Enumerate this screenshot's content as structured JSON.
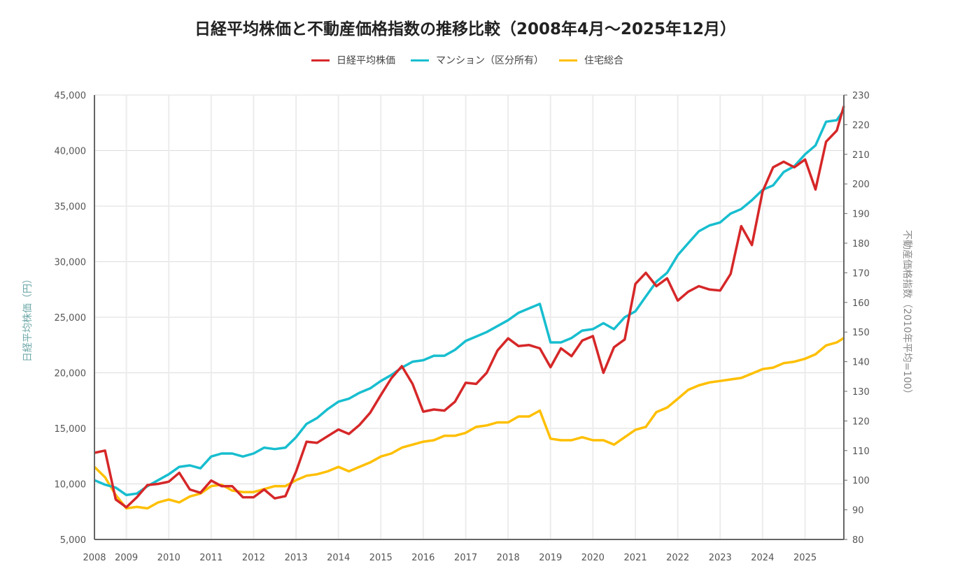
{
  "chart_data": {
    "type": "line",
    "title": "日経平均株価と不動産価格指数の推移比較（2008年4月～2025年12月）",
    "ylabel_left": "日経平均株価（円）",
    "ylabel_right": "不動産価格指数（2010年平均=100）",
    "ylim_left": [
      5000,
      45000
    ],
    "ylim_right": [
      80,
      230
    ],
    "yticks_left": [
      "5,000",
      "10,000",
      "15,000",
      "20,000",
      "25,000",
      "30,000",
      "35,000",
      "40,000",
      "45,000"
    ],
    "yticks_right": [
      "80",
      "90",
      "100",
      "110",
      "120",
      "130",
      "140",
      "150",
      "160",
      "170",
      "180",
      "190",
      "200",
      "210",
      "220",
      "230"
    ],
    "xticks": [
      "2008",
      "2009",
      "2010",
      "2011",
      "2012",
      "2013",
      "2014",
      "2015",
      "2016",
      "2017",
      "2018",
      "2019",
      "2020",
      "2021",
      "2022",
      "2023",
      "2024",
      "2025"
    ],
    "grid": true,
    "legend_position": "top",
    "x": [
      "2008-04",
      "2008-07",
      "2008-10",
      "2009-01",
      "2009-04",
      "2009-07",
      "2009-10",
      "2010-01",
      "2010-04",
      "2010-07",
      "2010-10",
      "2011-01",
      "2011-04",
      "2011-07",
      "2011-10",
      "2012-01",
      "2012-04",
      "2012-07",
      "2012-10",
      "2013-01",
      "2013-04",
      "2013-07",
      "2013-10",
      "2014-01",
      "2014-04",
      "2014-07",
      "2014-10",
      "2015-01",
      "2015-04",
      "2015-07",
      "2015-10",
      "2016-01",
      "2016-04",
      "2016-07",
      "2016-10",
      "2017-01",
      "2017-04",
      "2017-07",
      "2017-10",
      "2018-01",
      "2018-04",
      "2018-07",
      "2018-10",
      "2019-01",
      "2019-04",
      "2019-07",
      "2019-10",
      "2020-01",
      "2020-04",
      "2020-07",
      "2020-10",
      "2021-01",
      "2021-04",
      "2021-07",
      "2021-10",
      "2022-01",
      "2022-04",
      "2022-07",
      "2022-10",
      "2023-01",
      "2023-04",
      "2023-07",
      "2023-10",
      "2024-01",
      "2024-04",
      "2024-07",
      "2024-10",
      "2025-01",
      "2025-04",
      "2025-07",
      "2025-10",
      "2025-12"
    ],
    "series": [
      {
        "name": "日経平均株価",
        "axis": "left",
        "color": "#d62728",
        "values": [
          12800,
          13000,
          8600,
          7900,
          8800,
          9900,
          10000,
          10200,
          11000,
          9500,
          9200,
          10300,
          9800,
          9800,
          8800,
          8800,
          9500,
          8700,
          8900,
          11100,
          13800,
          13700,
          14300,
          14900,
          14500,
          15300,
          16400,
          18000,
          19500,
          20600,
          19000,
          16500,
          16700,
          16600,
          17400,
          19100,
          19000,
          20000,
          22000,
          23100,
          22400,
          22500,
          22200,
          20500,
          22200,
          21500,
          22900,
          23300,
          20000,
          22300,
          23000,
          28000,
          29000,
          27800,
          28500,
          26500,
          27300,
          27800,
          27500,
          27400,
          28900,
          33200,
          31500,
          36300,
          38500,
          39000,
          38500,
          39200,
          36500,
          40800,
          41800,
          44000
        ]
      },
      {
        "name": "マンション（区分所有）",
        "axis": "right",
        "color": "#17becf",
        "values": [
          100,
          98.5,
          97.5,
          95,
          95.5,
          98,
          100,
          102,
          104.5,
          105,
          104,
          108,
          109,
          109,
          108,
          109,
          111,
          110.5,
          111,
          114.5,
          119,
          121,
          124,
          126.5,
          127.5,
          129.5,
          131,
          133.5,
          135.5,
          138,
          140,
          140.5,
          142,
          142,
          144,
          147,
          148.5,
          150,
          152,
          154,
          156.5,
          158,
          159.5,
          146.5,
          146.5,
          148,
          150.5,
          151,
          153,
          151,
          155,
          157,
          162,
          167,
          170,
          176,
          180,
          184,
          186,
          187,
          190,
          191.5,
          194.5,
          198,
          199.5,
          204,
          206,
          210,
          213,
          221,
          221.5,
          225
        ]
      },
      {
        "name": "住宅総合",
        "axis": "right",
        "color": "#ffbf00",
        "values": [
          104.5,
          101,
          95,
          90.5,
          91,
          90.5,
          92.5,
          93.5,
          92.5,
          94.5,
          95.5,
          98,
          98.5,
          96.5,
          96,
          96,
          97,
          98,
          98,
          100,
          101.5,
          102,
          103,
          104.5,
          103,
          104.5,
          106,
          108,
          109,
          111,
          112,
          113,
          113.5,
          115,
          115,
          116,
          118,
          118.5,
          119.5,
          119.5,
          121.5,
          121.5,
          123.5,
          114,
          113.5,
          113.5,
          114.5,
          113.5,
          113.5,
          112,
          114.5,
          117,
          118,
          123,
          124.5,
          127.5,
          130.5,
          132,
          133,
          133.5,
          134,
          134.5,
          136,
          137.5,
          138,
          139.5,
          140,
          141,
          142.5,
          145.5,
          146.5,
          148
        ]
      }
    ]
  }
}
